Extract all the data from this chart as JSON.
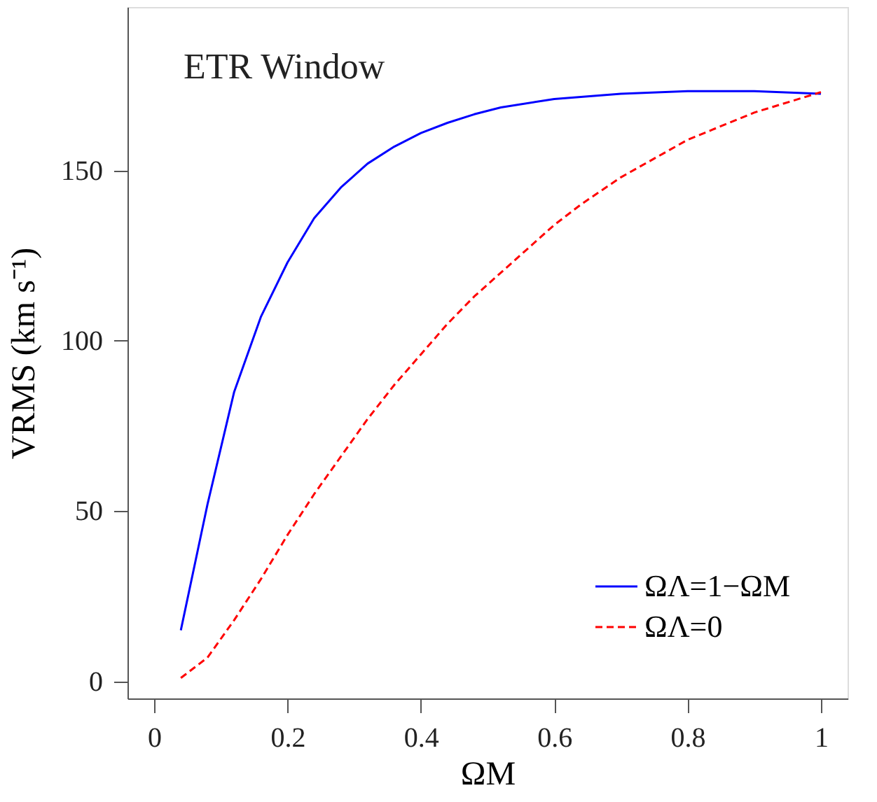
{
  "chart_data": {
    "type": "line",
    "xlabel": "ΩM",
    "ylabel": "VRMS (km s⁻¹)",
    "xlim": [
      -0.04,
      1.04
    ],
    "ylim": [
      -5,
      198
    ],
    "xticks": [
      0,
      0.2,
      0.4,
      0.6,
      0.8,
      1
    ],
    "yticks": [
      0,
      50,
      100,
      150
    ],
    "grid": false,
    "legend": "bottom right",
    "annotations": [
      "ETR Window"
    ],
    "series": [
      {
        "name": "ΩΛ=1−ΩM",
        "color": "#0000ff",
        "line_style": "solid",
        "x": [
          0.04,
          0.08,
          0.12,
          0.16,
          0.2,
          0.24,
          0.28,
          0.32,
          0.36,
          0.4,
          0.44,
          0.48,
          0.52,
          0.6,
          0.7,
          0.8,
          0.9,
          1.0
        ],
        "values": [
          15,
          52,
          85,
          107,
          123,
          136,
          145,
          152,
          157,
          161,
          164,
          166.5,
          168.5,
          171,
          172.5,
          173.3,
          173.3,
          172.5
        ]
      },
      {
        "name": "ΩΛ=0",
        "color": "#ff0000",
        "line_style": "dashed",
        "x": [
          0.04,
          0.08,
          0.12,
          0.16,
          0.2,
          0.24,
          0.28,
          0.32,
          0.36,
          0.4,
          0.44,
          0.48,
          0.52,
          0.56,
          0.6,
          0.64,
          0.7,
          0.8,
          0.9,
          1.0
        ],
        "values": [
          1,
          7,
          18,
          30,
          43,
          55,
          66,
          77,
          87,
          96,
          105,
          113,
          120,
          127,
          134,
          140,
          148,
          159,
          167,
          173
        ]
      }
    ]
  }
}
